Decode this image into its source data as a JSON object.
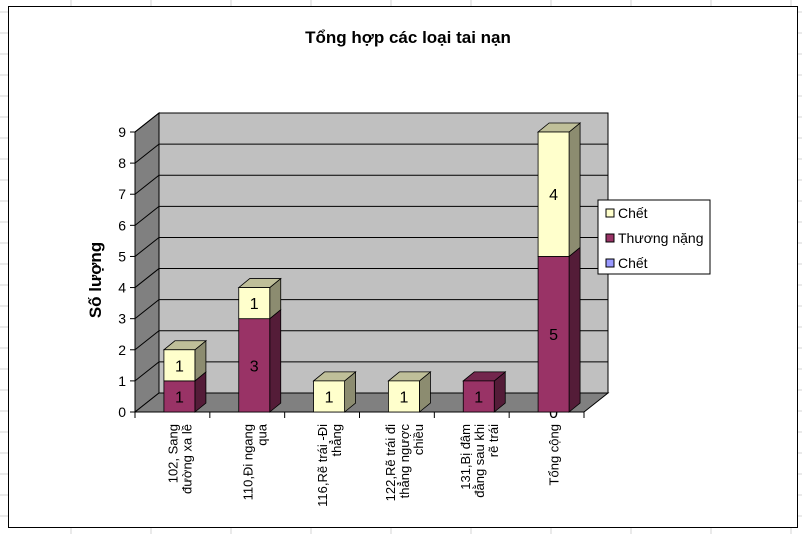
{
  "chart_data": {
    "type": "bar",
    "stacked": true,
    "three_d": true,
    "title": "Tổng hợp các loại tai nạn",
    "xlabel": "",
    "ylabel": "Số lượng",
    "ylim": [
      0,
      9
    ],
    "yticks": [
      "0",
      "1",
      "2",
      "3",
      "4",
      "5",
      "6",
      "7",
      "8",
      "9"
    ],
    "grid": true,
    "legend_position": "right",
    "categories": [
      [
        "102, Sang",
        "đường xa lề"
      ],
      [
        "110,Đi ngang",
        "qua"
      ],
      [
        "116,Rẽ trái -Đi",
        "thẳng"
      ],
      [
        "122,Rẽ trái đi",
        "thẳng ngược",
        "chiều"
      ],
      [
        "131,Bị đâm",
        "đằng sau khi",
        "rẽ trái"
      ],
      [
        "Tổng cộng"
      ]
    ],
    "series": [
      {
        "name": "Chết",
        "values": [
          0,
          0,
          0,
          0,
          0,
          0
        ],
        "color": "#9999ff",
        "labels": [
          "",
          "",
          "",
          "",
          "",
          "0"
        ]
      },
      {
        "name": "Thương nặng",
        "values": [
          1,
          3,
          0,
          0,
          1,
          5
        ],
        "color": "#993366",
        "labels": [
          "1",
          "3",
          "",
          "",
          "1",
          "5"
        ]
      },
      {
        "name": "Chết",
        "values": [
          1,
          1,
          1,
          1,
          0,
          4
        ],
        "color": "#ffffcc",
        "labels": [
          "1",
          "1",
          "1",
          "1",
          "",
          "4"
        ]
      }
    ],
    "legend_order": [
      2,
      1,
      0
    ],
    "colors": {
      "wall": "#c0c0c0",
      "wall_side": "#808080",
      "floor": "#808080",
      "gridline": "#000000"
    }
  }
}
